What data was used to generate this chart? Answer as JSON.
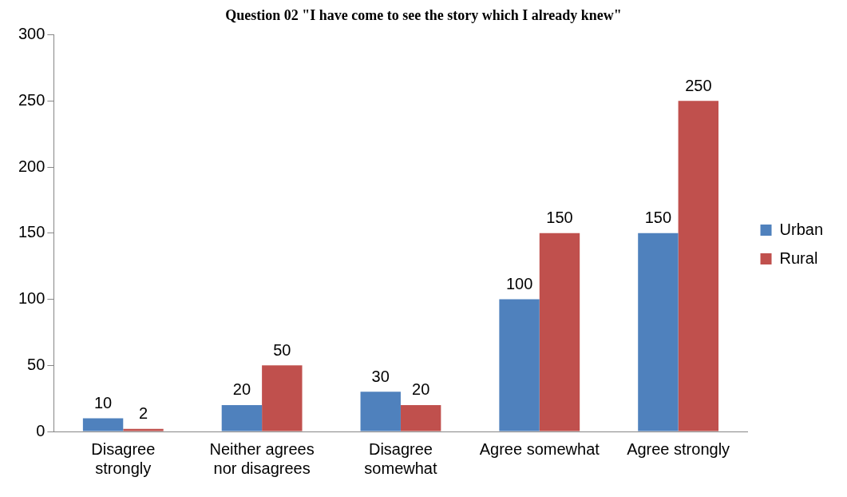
{
  "chart_data": {
    "type": "bar",
    "title": "Question 02 \"I have come to see the story which I already knew\"",
    "categories": [
      "Disagree strongly",
      "Neither agrees nor disagrees",
      "Disagree somewhat",
      "Agree somewhat",
      "Agree strongly"
    ],
    "series": [
      {
        "name": "Urban",
        "color": "#4f81bd",
        "values": [
          10,
          20,
          30,
          100,
          150
        ]
      },
      {
        "name": "Rural",
        "color": "#c0504d",
        "values": [
          2,
          50,
          20,
          150,
          250
        ]
      }
    ],
    "ylim": [
      0,
      300
    ],
    "yticks": [
      0,
      50,
      100,
      150,
      200,
      250,
      300
    ],
    "grid": false,
    "legend": "right",
    "data_labels": true
  }
}
